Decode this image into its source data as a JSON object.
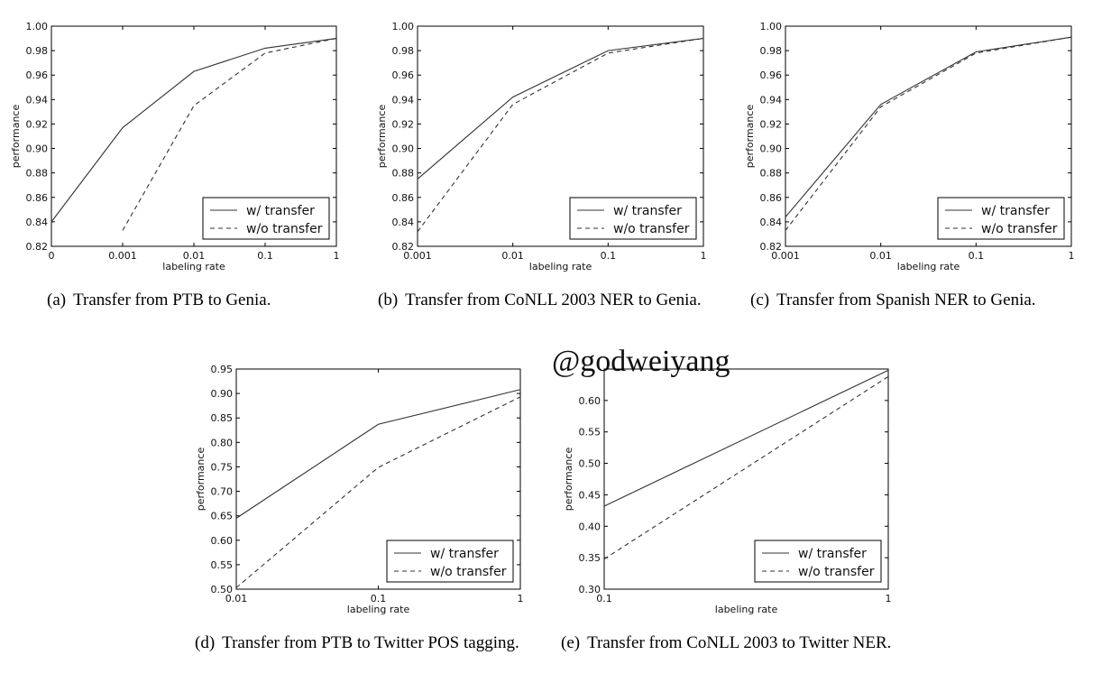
{
  "watermark": "@godweiyang",
  "chart_data": [
    {
      "id": "a",
      "type": "line",
      "caption_label": "(a)",
      "caption": "Transfer from PTB to Genia.",
      "xlabel": "labeling rate",
      "ylabel": "performance",
      "x": [
        "0",
        "0.001",
        "0.01",
        "0.1",
        "1"
      ],
      "yticks": [
        "0.82",
        "0.84",
        "0.86",
        "0.88",
        "0.90",
        "0.92",
        "0.94",
        "0.96",
        "0.98",
        "1.00"
      ],
      "ylim": [
        0.82,
        1.0
      ],
      "series": [
        {
          "name": "w/ transfer",
          "style": "solid",
          "values": [
            0.84,
            0.917,
            0.963,
            0.982,
            0.99
          ]
        },
        {
          "name": "w/o transfer",
          "style": "dashed",
          "values": [
            null,
            0.833,
            0.935,
            0.978,
            0.99
          ]
        }
      ],
      "legend": "lower-right"
    },
    {
      "id": "b",
      "type": "line",
      "caption_label": "(b)",
      "caption": "Transfer from CoNLL 2003 NER to Genia.",
      "xlabel": "labeling rate",
      "ylabel": "performance",
      "x": [
        "0.001",
        "0.01",
        "0.1",
        "1"
      ],
      "yticks": [
        "0.82",
        "0.84",
        "0.86",
        "0.88",
        "0.90",
        "0.92",
        "0.94",
        "0.96",
        "0.98",
        "1.00"
      ],
      "ylim": [
        0.82,
        1.0
      ],
      "series": [
        {
          "name": "w/ transfer",
          "style": "solid",
          "values": [
            0.875,
            0.942,
            0.98,
            0.99
          ]
        },
        {
          "name": "w/o transfer",
          "style": "dashed",
          "values": [
            0.832,
            0.936,
            0.978,
            0.99
          ]
        }
      ],
      "legend": "lower-right"
    },
    {
      "id": "c",
      "type": "line",
      "caption_label": "(c)",
      "caption": "Transfer from Spanish NER to Genia.",
      "xlabel": "labeling rate",
      "ylabel": "performance",
      "x": [
        "0.001",
        "0.01",
        "0.1",
        "1"
      ],
      "yticks": [
        "0.82",
        "0.84",
        "0.86",
        "0.88",
        "0.90",
        "0.92",
        "0.94",
        "0.96",
        "0.98",
        "1.00"
      ],
      "ylim": [
        0.82,
        1.0
      ],
      "series": [
        {
          "name": "w/ transfer",
          "style": "solid",
          "values": [
            0.844,
            0.936,
            0.979,
            0.991
          ]
        },
        {
          "name": "w/o transfer",
          "style": "dashed",
          "values": [
            0.833,
            0.934,
            0.978,
            0.991
          ]
        }
      ],
      "legend": "lower-right"
    },
    {
      "id": "d",
      "type": "line",
      "caption_label": "(d)",
      "caption": "Transfer from PTB to Twitter POS tagging.",
      "xlabel": "labeling rate",
      "ylabel": "performance",
      "x": [
        "0.01",
        "0.1",
        "1"
      ],
      "yticks": [
        "0.50",
        "0.55",
        "0.60",
        "0.65",
        "0.70",
        "0.75",
        "0.80",
        "0.85",
        "0.90",
        "0.95"
      ],
      "ylim": [
        0.5,
        0.95
      ],
      "series": [
        {
          "name": "w/ transfer",
          "style": "solid",
          "values": [
            0.645,
            0.837,
            0.908
          ]
        },
        {
          "name": "w/o transfer",
          "style": "dashed",
          "values": [
            0.503,
            0.749,
            0.893
          ]
        }
      ],
      "legend": "lower-right"
    },
    {
      "id": "e",
      "type": "line",
      "caption_label": "(e)",
      "caption": "Transfer from CoNLL 2003 to Twitter NER.",
      "xlabel": "labeling rate",
      "ylabel": "performance",
      "x": [
        "0.1",
        "1"
      ],
      "yticks": [
        "0.30",
        "0.35",
        "0.40",
        "0.45",
        "0.50",
        "0.55",
        "0.60"
      ],
      "ylim": [
        0.3,
        0.65
      ],
      "series": [
        {
          "name": "w/ transfer",
          "style": "solid",
          "values": [
            0.432,
            0.648
          ]
        },
        {
          "name": "w/o transfer",
          "style": "dashed",
          "values": [
            0.348,
            0.638
          ]
        }
      ],
      "legend": "lower-right"
    }
  ]
}
